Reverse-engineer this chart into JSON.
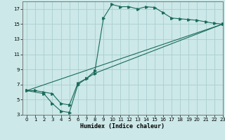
{
  "xlabel": "Humidex (Indice chaleur)",
  "ylabel": "",
  "bg_color": "#cce8e8",
  "grid_color": "#aacece",
  "line_color": "#1a6b5a",
  "line1_x": [
    0,
    1,
    2,
    3,
    4,
    5,
    6,
    7,
    8,
    9,
    10,
    11,
    12,
    13,
    14,
    15,
    16,
    17,
    18,
    19,
    20,
    21,
    22,
    23
  ],
  "line1_y": [
    6.2,
    6.2,
    6.0,
    5.8,
    4.5,
    4.3,
    7.2,
    7.8,
    8.8,
    15.8,
    17.6,
    17.3,
    17.3,
    17.0,
    17.3,
    17.2,
    16.5,
    15.8,
    15.7,
    15.6,
    15.5,
    15.3,
    15.1,
    15.0
  ],
  "line2_x": [
    0,
    2,
    3,
    4,
    5,
    6,
    7,
    8,
    23
  ],
  "line2_y": [
    6.2,
    5.8,
    4.5,
    3.5,
    3.3,
    7.0,
    7.8,
    8.5,
    15.0
  ],
  "line3_x": [
    0,
    23
  ],
  "line3_y": [
    6.2,
    15.0
  ],
  "xlim": [
    -0.5,
    23
  ],
  "ylim": [
    3,
    18
  ],
  "xticks": [
    0,
    1,
    2,
    3,
    4,
    5,
    6,
    7,
    8,
    9,
    10,
    11,
    12,
    13,
    14,
    15,
    16,
    17,
    18,
    19,
    20,
    21,
    22,
    23
  ],
  "yticks": [
    3,
    5,
    7,
    9,
    11,
    13,
    15,
    17
  ]
}
